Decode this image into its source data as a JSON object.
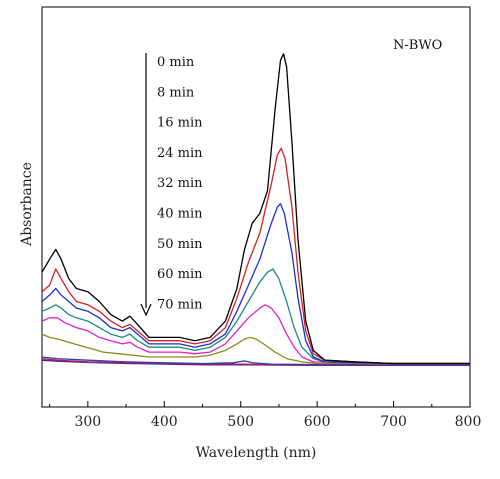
{
  "chart_data": {
    "type": "line",
    "xlabel": "Wavelength (nm)",
    "ylabel": "Absorbance",
    "xlim": [
      240,
      800
    ],
    "ylim": [
      0,
      1
    ],
    "x_ticks": [
      300,
      400,
      500,
      600,
      700,
      800
    ],
    "annotation": "N-BWO",
    "legend_order": [
      "0 min",
      "8 min",
      "16 min",
      "24 min",
      "32 min",
      "40 min",
      "50 min",
      "60 min",
      "70 min"
    ],
    "series": [
      {
        "name": "0 min",
        "color": "#000000",
        "points": [
          [
            240,
            0.3
          ],
          [
            250,
            0.34
          ],
          [
            258,
            0.37
          ],
          [
            265,
            0.34
          ],
          [
            275,
            0.28
          ],
          [
            285,
            0.25
          ],
          [
            300,
            0.24
          ],
          [
            315,
            0.21
          ],
          [
            330,
            0.17
          ],
          [
            345,
            0.15
          ],
          [
            355,
            0.165
          ],
          [
            365,
            0.14
          ],
          [
            380,
            0.1
          ],
          [
            400,
            0.1
          ],
          [
            420,
            0.1
          ],
          [
            440,
            0.09
          ],
          [
            460,
            0.1
          ],
          [
            480,
            0.15
          ],
          [
            495,
            0.25
          ],
          [
            505,
            0.37
          ],
          [
            515,
            0.45
          ],
          [
            525,
            0.48
          ],
          [
            535,
            0.55
          ],
          [
            545,
            0.8
          ],
          [
            552,
            0.95
          ],
          [
            556,
            0.97
          ],
          [
            560,
            0.93
          ],
          [
            567,
            0.7
          ],
          [
            575,
            0.4
          ],
          [
            585,
            0.15
          ],
          [
            595,
            0.06
          ],
          [
            610,
            0.03
          ],
          [
            650,
            0.025
          ],
          [
            700,
            0.02
          ],
          [
            750,
            0.02
          ],
          [
            800,
            0.02
          ]
        ]
      },
      {
        "name": "8 min",
        "color": "#d42020",
        "points": [
          [
            240,
            0.24
          ],
          [
            250,
            0.26
          ],
          [
            258,
            0.31
          ],
          [
            265,
            0.28
          ],
          [
            275,
            0.24
          ],
          [
            285,
            0.21
          ],
          [
            300,
            0.2
          ],
          [
            315,
            0.18
          ],
          [
            330,
            0.15
          ],
          [
            345,
            0.13
          ],
          [
            355,
            0.14
          ],
          [
            365,
            0.12
          ],
          [
            380,
            0.09
          ],
          [
            400,
            0.09
          ],
          [
            420,
            0.09
          ],
          [
            440,
            0.08
          ],
          [
            460,
            0.09
          ],
          [
            480,
            0.13
          ],
          [
            495,
            0.22
          ],
          [
            510,
            0.33
          ],
          [
            525,
            0.42
          ],
          [
            540,
            0.57
          ],
          [
            548,
            0.66
          ],
          [
            553,
            0.68
          ],
          [
            558,
            0.65
          ],
          [
            567,
            0.5
          ],
          [
            575,
            0.3
          ],
          [
            585,
            0.12
          ],
          [
            595,
            0.05
          ],
          [
            610,
            0.03
          ],
          [
            650,
            0.025
          ],
          [
            700,
            0.02
          ],
          [
            800,
            0.02
          ]
        ]
      },
      {
        "name": "16 min",
        "color": "#1a2fd0",
        "points": [
          [
            240,
            0.21
          ],
          [
            250,
            0.23
          ],
          [
            258,
            0.25
          ],
          [
            265,
            0.23
          ],
          [
            275,
            0.21
          ],
          [
            285,
            0.19
          ],
          [
            300,
            0.18
          ],
          [
            315,
            0.16
          ],
          [
            330,
            0.13
          ],
          [
            345,
            0.12
          ],
          [
            355,
            0.13
          ],
          [
            365,
            0.11
          ],
          [
            380,
            0.08
          ],
          [
            400,
            0.08
          ],
          [
            420,
            0.08
          ],
          [
            440,
            0.07
          ],
          [
            460,
            0.08
          ],
          [
            480,
            0.11
          ],
          [
            495,
            0.18
          ],
          [
            510,
            0.26
          ],
          [
            525,
            0.34
          ],
          [
            540,
            0.45
          ],
          [
            548,
            0.5
          ],
          [
            552,
            0.51
          ],
          [
            557,
            0.48
          ],
          [
            567,
            0.36
          ],
          [
            575,
            0.22
          ],
          [
            585,
            0.09
          ],
          [
            595,
            0.04
          ],
          [
            610,
            0.025
          ],
          [
            700,
            0.02
          ],
          [
            800,
            0.02
          ]
        ]
      },
      {
        "name": "24 min",
        "color": "#1c8a82",
        "points": [
          [
            240,
            0.18
          ],
          [
            250,
            0.19
          ],
          [
            258,
            0.2
          ],
          [
            265,
            0.19
          ],
          [
            275,
            0.17
          ],
          [
            285,
            0.16
          ],
          [
            300,
            0.15
          ],
          [
            315,
            0.13
          ],
          [
            330,
            0.11
          ],
          [
            345,
            0.1
          ],
          [
            355,
            0.11
          ],
          [
            365,
            0.09
          ],
          [
            380,
            0.07
          ],
          [
            400,
            0.07
          ],
          [
            420,
            0.07
          ],
          [
            440,
            0.06
          ],
          [
            460,
            0.07
          ],
          [
            480,
            0.1
          ],
          [
            495,
            0.15
          ],
          [
            510,
            0.21
          ],
          [
            525,
            0.27
          ],
          [
            535,
            0.3
          ],
          [
            542,
            0.31
          ],
          [
            550,
            0.28
          ],
          [
            560,
            0.21
          ],
          [
            570,
            0.13
          ],
          [
            580,
            0.07
          ],
          [
            595,
            0.035
          ],
          [
            610,
            0.025
          ],
          [
            700,
            0.02
          ],
          [
            800,
            0.02
          ]
        ]
      },
      {
        "name": "32 min",
        "color": "#e020d0",
        "points": [
          [
            240,
            0.15
          ],
          [
            250,
            0.16
          ],
          [
            260,
            0.16
          ],
          [
            270,
            0.145
          ],
          [
            285,
            0.13
          ],
          [
            300,
            0.12
          ],
          [
            315,
            0.1
          ],
          [
            330,
            0.09
          ],
          [
            345,
            0.08
          ],
          [
            355,
            0.085
          ],
          [
            365,
            0.07
          ],
          [
            380,
            0.055
          ],
          [
            400,
            0.055
          ],
          [
            420,
            0.055
          ],
          [
            440,
            0.05
          ],
          [
            460,
            0.055
          ],
          [
            480,
            0.08
          ],
          [
            495,
            0.12
          ],
          [
            510,
            0.16
          ],
          [
            525,
            0.19
          ],
          [
            532,
            0.2
          ],
          [
            540,
            0.19
          ],
          [
            550,
            0.16
          ],
          [
            560,
            0.11
          ],
          [
            570,
            0.07
          ],
          [
            580,
            0.04
          ],
          [
            595,
            0.025
          ],
          [
            700,
            0.02
          ],
          [
            800,
            0.02
          ]
        ]
      },
      {
        "name": "40 min",
        "color": "#8a8a1a",
        "points": [
          [
            240,
            0.11
          ],
          [
            250,
            0.1
          ],
          [
            260,
            0.095
          ],
          [
            275,
            0.085
          ],
          [
            290,
            0.075
          ],
          [
            305,
            0.065
          ],
          [
            320,
            0.055
          ],
          [
            340,
            0.05
          ],
          [
            360,
            0.045
          ],
          [
            380,
            0.04
          ],
          [
            400,
            0.04
          ],
          [
            420,
            0.04
          ],
          [
            440,
            0.04
          ],
          [
            460,
            0.045
          ],
          [
            480,
            0.06
          ],
          [
            495,
            0.08
          ],
          [
            505,
            0.095
          ],
          [
            512,
            0.1
          ],
          [
            520,
            0.095
          ],
          [
            530,
            0.08
          ],
          [
            545,
            0.055
          ],
          [
            560,
            0.035
          ],
          [
            580,
            0.025
          ],
          [
            600,
            0.02
          ],
          [
            700,
            0.02
          ],
          [
            800,
            0.02
          ]
        ]
      },
      {
        "name": "50 min",
        "color": "#3a3aa0",
        "points": [
          [
            240,
            0.04
          ],
          [
            260,
            0.035
          ],
          [
            300,
            0.03
          ],
          [
            350,
            0.025
          ],
          [
            400,
            0.022
          ],
          [
            450,
            0.02
          ],
          [
            490,
            0.022
          ],
          [
            505,
            0.028
          ],
          [
            515,
            0.022
          ],
          [
            540,
            0.018
          ],
          [
            600,
            0.017
          ],
          [
            700,
            0.016
          ],
          [
            800,
            0.016
          ]
        ]
      },
      {
        "name": "60 min",
        "color": "#a02060",
        "points": [
          [
            240,
            0.035
          ],
          [
            260,
            0.03
          ],
          [
            300,
            0.025
          ],
          [
            350,
            0.022
          ],
          [
            400,
            0.02
          ],
          [
            450,
            0.018
          ],
          [
            500,
            0.018
          ],
          [
            550,
            0.016
          ],
          [
            600,
            0.015
          ],
          [
            700,
            0.015
          ],
          [
            800,
            0.015
          ]
        ]
      },
      {
        "name": "70 min",
        "color": "#5020a0",
        "points": [
          [
            240,
            0.03
          ],
          [
            260,
            0.027
          ],
          [
            300,
            0.023
          ],
          [
            350,
            0.02
          ],
          [
            400,
            0.018
          ],
          [
            450,
            0.016
          ],
          [
            500,
            0.016
          ],
          [
            550,
            0.015
          ],
          [
            600,
            0.014
          ],
          [
            700,
            0.014
          ],
          [
            800,
            0.014
          ]
        ]
      }
    ]
  }
}
